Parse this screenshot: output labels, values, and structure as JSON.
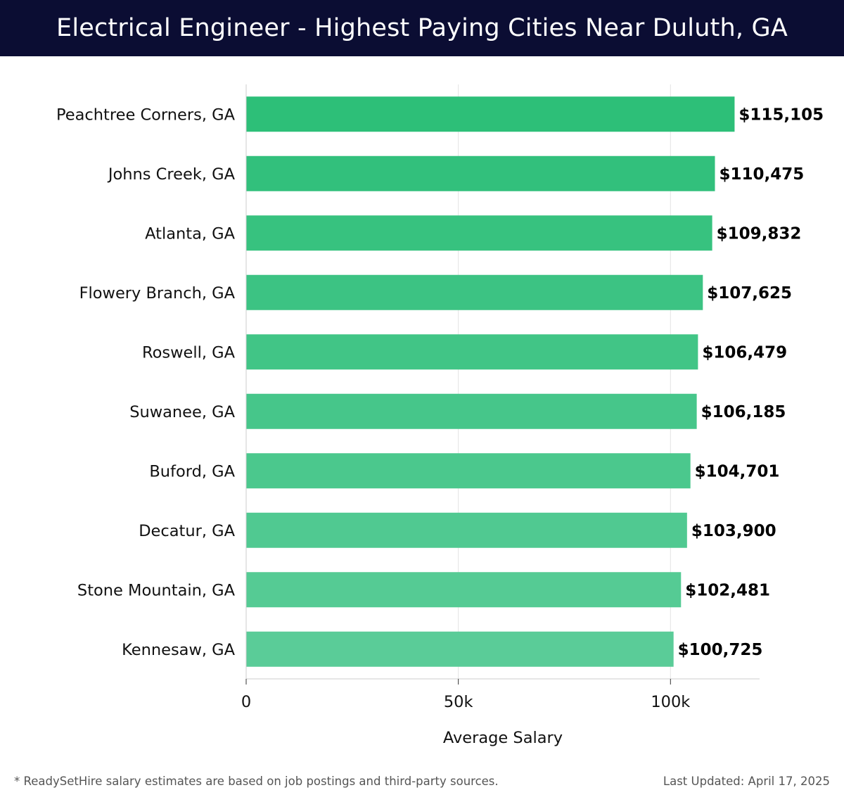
{
  "header": {
    "title": "Electrical Engineer - Highest Paying Cities Near Duluth, GA"
  },
  "footer": {
    "note": "* ReadySetHire salary estimates are based on job postings and third-party sources.",
    "updated": "Last Updated: April 17, 2025"
  },
  "chart_data": {
    "type": "bar",
    "orientation": "horizontal",
    "title": "Electrical Engineer - Highest Paying Cities Near Duluth, GA",
    "xlabel": "Average Salary",
    "ylabel": "",
    "categories": [
      "Peachtree Corners, GA",
      "Johns Creek, GA",
      "Atlanta, GA",
      "Flowery Branch, GA",
      "Roswell, GA",
      "Suwanee, GA",
      "Buford, GA",
      "Decatur, GA",
      "Stone Mountain, GA",
      "Kennesaw, GA"
    ],
    "values": [
      115105,
      110475,
      109832,
      107625,
      106479,
      106185,
      104701,
      103900,
      102481,
      100725
    ],
    "value_labels": [
      "$115,105",
      "$110,475",
      "$109,832",
      "$107,625",
      "$106,479",
      "$106,185",
      "$104,701",
      "$103,900",
      "$102,481",
      "$100,725"
    ],
    "xlim": [
      0,
      121000
    ],
    "xticks": [
      0,
      50000,
      100000
    ],
    "xtick_labels": [
      "0",
      "50k",
      "100k"
    ],
    "grid": true,
    "bar_color_start": "#2dbf78",
    "bar_color_end": "#5acc98"
  }
}
